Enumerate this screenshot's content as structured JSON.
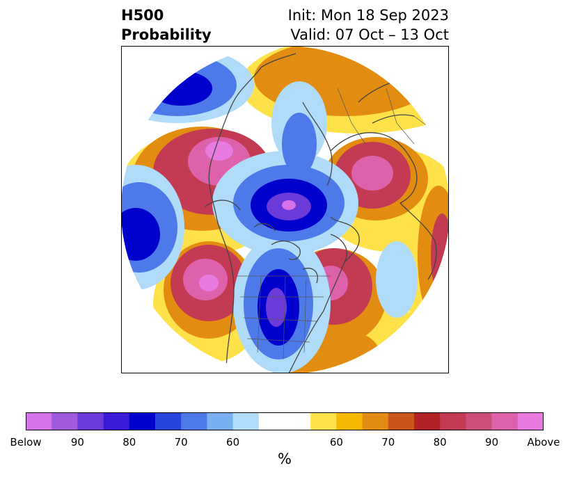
{
  "header": {
    "title_line1": "H500",
    "title_line2": "Probability",
    "init": "Init: Mon 18 Sep 2023",
    "valid": "Valid: 07 Oct – 13 Oct"
  },
  "map": {
    "projection": "north-polar-stereographic",
    "variable": "H500 probability",
    "anomalies": [
      {
        "type": "above",
        "peak_category": "Above"
      },
      {
        "type": "above",
        "peak_category": "Above"
      },
      {
        "type": "above",
        "peak_category": "Above"
      },
      {
        "type": "above",
        "peak_category": "90"
      },
      {
        "type": "below",
        "peak_category": "Below"
      },
      {
        "type": "below",
        "peak_category": "90"
      },
      {
        "type": "below",
        "peak_category": "80"
      },
      {
        "type": "below",
        "peak_category": "70"
      }
    ]
  },
  "colorbar": {
    "unit_label": "%",
    "below_colors": [
      "#d572e7",
      "#a05ae0",
      "#6b3ad8",
      "#3a1ad6",
      "#0000cd",
      "#2a45dd",
      "#4d7ae8",
      "#78b0f2",
      "#b0dcfa"
    ],
    "neutral_color": "#ffffff",
    "above_colors": [
      "#ffe24a",
      "#f5b800",
      "#e28c12",
      "#c9571c",
      "#b22325",
      "#c23b52",
      "#cc4f7b",
      "#de62ab",
      "#e87ae0"
    ],
    "tick_labels": [
      "Below",
      "90",
      "80",
      "70",
      "60",
      "60",
      "70",
      "80",
      "90",
      "Above"
    ]
  }
}
